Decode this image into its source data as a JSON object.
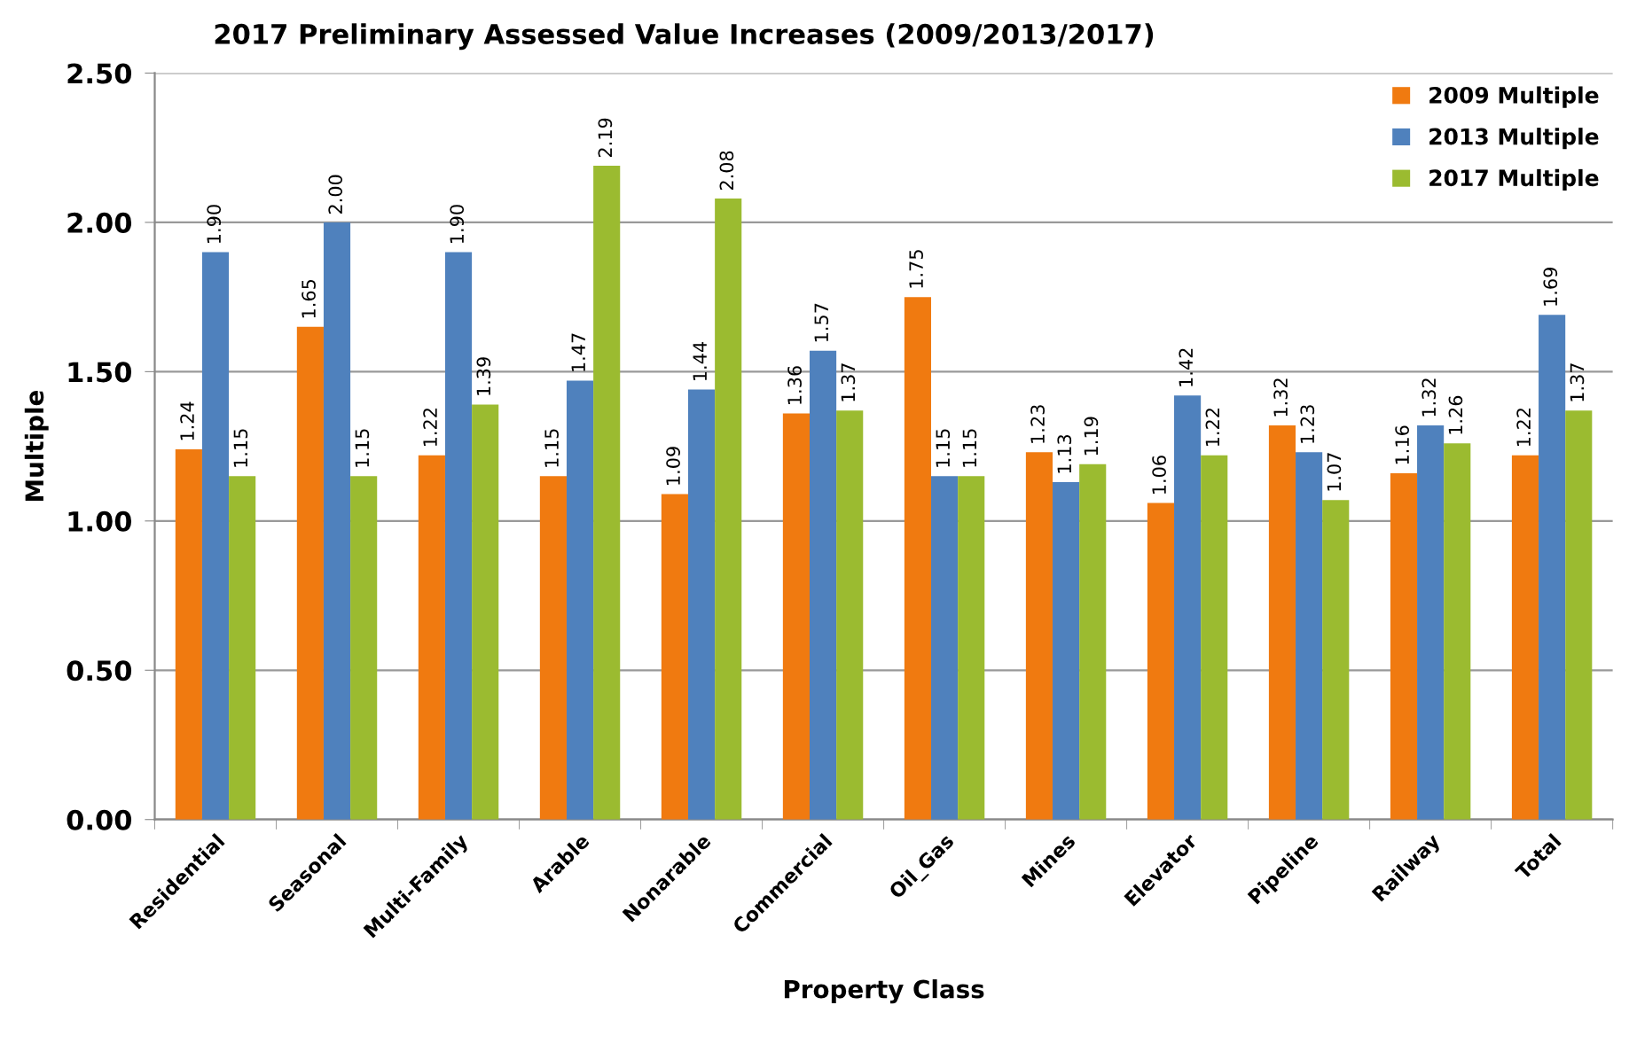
{
  "chart_data": {
    "type": "bar",
    "title": "2017 Preliminary Assessed Value Increases (2009/2013/2017)",
    "xlabel": "Property Class",
    "ylabel": "Multiple",
    "categories": [
      "Residential",
      "Seasonal",
      "Multi-Family",
      "Arable",
      "Nonarable",
      "Commercial",
      "Oil_Gas",
      "Mines",
      "Elevator",
      "Pipeline",
      "Railway",
      "Total"
    ],
    "series": [
      {
        "name": "2009 Multiple",
        "color": "#f07a10",
        "values": [
          1.24,
          1.65,
          1.22,
          1.15,
          1.09,
          1.36,
          1.75,
          1.23,
          1.06,
          1.32,
          1.16,
          1.22
        ],
        "value_labels": [
          "1.24",
          "1.65",
          "1.22",
          "1.15",
          "1.09",
          "1.36",
          "1.75",
          "1.23",
          "1.06",
          "1.32",
          "1.16",
          "1.22"
        ]
      },
      {
        "name": "2013 Multiple",
        "color": "#4f81bd",
        "values": [
          1.9,
          2.0,
          1.9,
          1.47,
          1.44,
          1.57,
          1.15,
          1.13,
          1.42,
          1.23,
          1.32,
          1.69
        ],
        "value_labels": [
          "1.90",
          "2.00",
          "1.90",
          "1.47",
          "1.44",
          "1.57",
          "1.15",
          "1.13",
          "1.42",
          "1.23",
          "1.32",
          "1.69"
        ]
      },
      {
        "name": "2017 Multiple",
        "color": "#9bbb30",
        "values": [
          1.15,
          1.15,
          1.39,
          2.19,
          2.08,
          1.37,
          1.15,
          1.19,
          1.22,
          1.07,
          1.26,
          1.37
        ],
        "value_labels": [
          "1.15",
          "1.15",
          "1.39",
          "2.19",
          "2.08",
          "1.37",
          "1.15",
          "1.19",
          "1.22",
          "1.07",
          "1.26",
          "1.37"
        ]
      }
    ],
    "ylim": [
      0,
      2.5
    ],
    "yticks": [
      {
        "value": 0,
        "label": "0.00"
      },
      {
        "value": 0.5,
        "label": "0.50"
      },
      {
        "value": 1.0,
        "label": "1.00"
      },
      {
        "value": 1.5,
        "label": "1.50"
      },
      {
        "value": 2.0,
        "label": "2.00"
      },
      {
        "value": 2.5,
        "label": "2.50"
      }
    ],
    "grid": "y",
    "legend": "top right"
  }
}
